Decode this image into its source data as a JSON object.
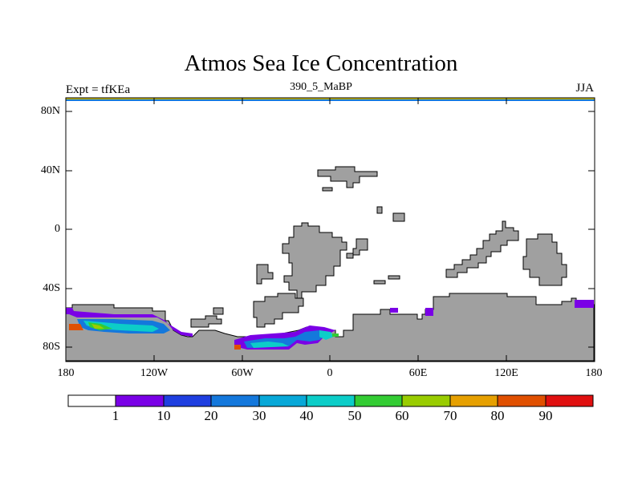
{
  "header": {
    "title": "Atmos Sea Ice Concentration",
    "left_label": "Expt = tfKEa",
    "center_label": "390_5_MaBP",
    "right_label": "JJA"
  },
  "axes": {
    "y_ticks": [
      "80N",
      "40N",
      "0",
      "40S",
      "80S"
    ],
    "x_ticks": [
      "180",
      "120W",
      "60W",
      "0",
      "60E",
      "120E",
      "180"
    ]
  },
  "colorbar": {
    "labels": [
      "1",
      "10",
      "20",
      "30",
      "40",
      "50",
      "60",
      "70",
      "80",
      "90"
    ],
    "colors": [
      "#ffffff",
      "#7a00e6",
      "#1f3fe0",
      "#1478dc",
      "#08a8d8",
      "#0ccdc8",
      "#33cc33",
      "#99cc00",
      "#ccbb00",
      "#e6a000",
      "#e05000",
      "#e01010"
    ]
  },
  "colors": {
    "land": "#a0a0a0",
    "ocean": "#ffffff"
  }
}
